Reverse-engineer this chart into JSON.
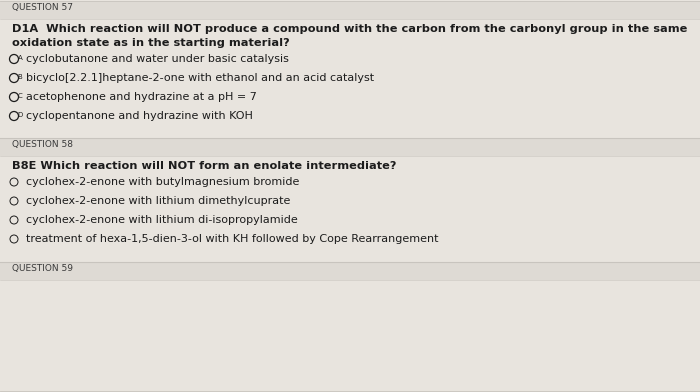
{
  "bg_color": "#e8e4de",
  "content_bg": "#f5f3f0",
  "q57_label": "QUESTION 57",
  "q57_line1": "D1A  Which reaction will NOT produce a compound with the carbon from the carbonyl group in the same",
  "q57_line2": "oxidation state as in the starting material?",
  "q57_options": [
    "cyclobutanone and water under basic catalysis",
    "bicyclo[2.2.1]heptane-2-one with ethanol and an acid catalyst",
    "acetophenone and hydrazine at a pH = 7",
    "cyclopentanone and hydrazine with KOH"
  ],
  "q57_superscripts": [
    "A",
    "B",
    "C",
    "D"
  ],
  "q58_label": "QUESTION 58",
  "q58_line1": "B8E Which reaction will NOT form an enolate intermediate?",
  "q58_options": [
    "cyclohex-2-enone with butylmagnesium bromide",
    "cyclohex-2-enone with lithium dimethylcuprate",
    "cyclohex-2-enone with lithium di-isopropylamide",
    "treatment of hexa-1,5-dien-3-ol with KH followed by Cope Rearrangement"
  ],
  "q59_label": "QUESTION 59",
  "text_color": "#1c1c1c",
  "label_color": "#3a3a3a",
  "divider_color": "#c8c4be",
  "section_header_bg": "#dedad4",
  "font_size_label": 6.5,
  "font_size_question": 8.2,
  "font_size_option": 8.0,
  "font_size_circle": 7.5,
  "font_size_superscript": 5.0
}
